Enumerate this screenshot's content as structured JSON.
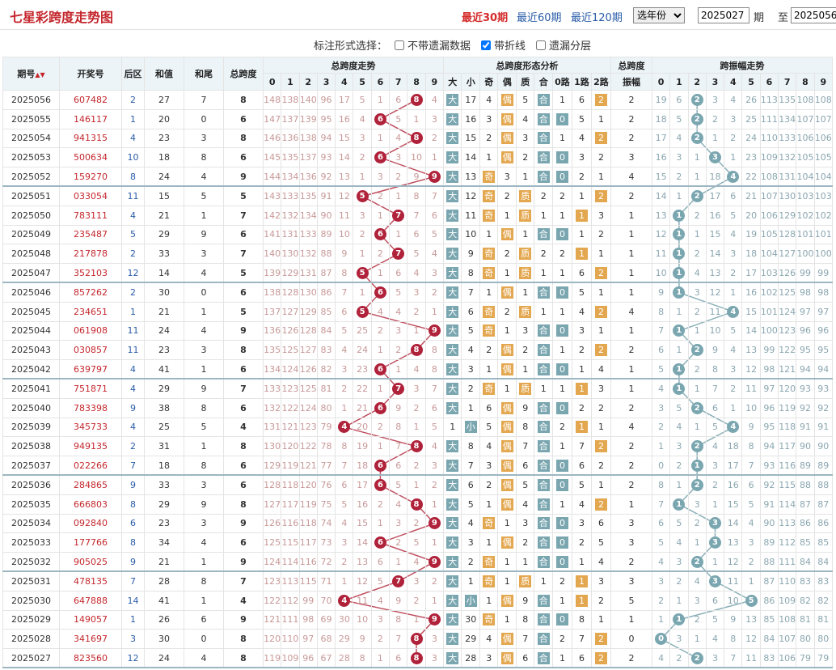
{
  "header": {
    "title": "七星彩跨度走势图",
    "periods": [
      "最近30期",
      "最近60期",
      "最近120期"
    ],
    "active_period": "最近30期",
    "year_select": "选年份",
    "from_value": "2025027",
    "from_label": "期",
    "to_label": "至",
    "to_value": "2025056"
  },
  "options": {
    "label": "标注形式选择：",
    "items": [
      {
        "label": "不带遗漏数据",
        "checked": false
      },
      {
        "label": "带折线",
        "checked": true
      },
      {
        "label": "遗漏分层",
        "checked": false
      }
    ]
  },
  "table": {
    "headers": {
      "issue": "期号",
      "draw": "开奖号",
      "back": "后区",
      "sum": "和值",
      "tail": "和尾",
      "span": "总跨度",
      "span_trend": "总跨度走势",
      "shape": "总跨度形态分析",
      "amp": "跨度振幅",
      "amp_trend": "跨振幅走势"
    },
    "digits": [
      "0",
      "1",
      "2",
      "3",
      "4",
      "5",
      "6",
      "7",
      "8",
      "9"
    ],
    "shape_cols": [
      "大",
      "小",
      "奇",
      "偶",
      "质",
      "合",
      "0路",
      "1路",
      "2路"
    ],
    "amp_label2": "振幅",
    "rows": [
      [
        "2025056",
        "607482",
        "2",
        "27",
        "7",
        "8",
        "148,138,140,96,17,5,1,6,8,4",
        "大,17,4,偶,5,合,1,6,2",
        "2",
        "19,6,2,3,4,26,113,135,108,108"
      ],
      [
        "2025055",
        "146117",
        "1",
        "20",
        "0",
        "6",
        "147,137,139,95,16,4,6,5,1,3",
        "大,16,3,偶,4,合,0,5,1",
        "2",
        "18,5,2,2,3,25,111,134,107,107"
      ],
      [
        "2025054",
        "941315",
        "4",
        "23",
        "3",
        "8",
        "146,136,138,94,15,3,1,4,8,2",
        "大,15,2,偶,3,合,1,4,2",
        "2",
        "17,4,2,1,2,24,110,133,106,106"
      ],
      [
        "2025053",
        "500634",
        "10",
        "18",
        "8",
        "6",
        "145,135,137,93,14,2,6,3,10,1",
        "大,14,1,偶,2,合,0,3,2",
        "3",
        "16,3,1,3,1,23,109,132,105,105"
      ],
      [
        "2025052",
        "159270",
        "8",
        "24",
        "4",
        "9",
        "144,134,136,92,13,1,3,2,9,9",
        "大,13,奇,3,1,合,0,2,1",
        "4",
        "15,2,1,18,4,22,108,131,104,104"
      ],
      [
        "2025051",
        "033054",
        "11",
        "15",
        "5",
        "5",
        "143,133,135,91,12,5,2,1,8,7",
        "大,12,奇,2,质,2,2,1,2",
        "2",
        "14,1,2,17,6,21,107,130,103,103"
      ],
      [
        "2025050",
        "783111",
        "4",
        "21",
        "1",
        "7",
        "142,132,134,90,11,3,1,7,7,6",
        "大,11,奇,1,质,1,1,1,3",
        "1",
        "13,1,2,16,5,20,106,129,102,102"
      ],
      [
        "2025049",
        "235487",
        "5",
        "29",
        "9",
        "6",
        "141,131,133,89,10,2,6,1,6,5",
        "大,10,1,偶,1,合,0,1,2",
        "1",
        "12,1,1,15,4,19,105,128,101,101"
      ],
      [
        "2025048",
        "217878",
        "2",
        "33",
        "3",
        "7",
        "140,130,132,88,9,1,2,7,5,4",
        "大,9,奇,2,质,2,2,1,1",
        "1",
        "11,1,2,14,3,18,104,127,100,100"
      ],
      [
        "2025047",
        "352103",
        "12",
        "14",
        "4",
        "5",
        "139,129,131,87,8,5,1,6,4,3",
        "大,8,奇,1,质,1,1,6,2",
        "1",
        "10,1,4,13,2,17,103,126,99,99"
      ],
      [
        "2025046",
        "857262",
        "2",
        "30",
        "0",
        "6",
        "138,128,130,86,7,1,6,5,3,2",
        "大,7,1,偶,1,合,0,5,1",
        "1",
        "9,1,3,12,1,16,102,125,98,98"
      ],
      [
        "2025045",
        "234651",
        "1",
        "21",
        "1",
        "5",
        "137,127,129,85,6,5,4,4,2,1",
        "大,6,奇,2,质,1,1,4,2",
        "4",
        "8,1,2,11,4,15,101,124,97,97"
      ],
      [
        "2025044",
        "061908",
        "11",
        "24",
        "4",
        "9",
        "136,126,128,84,5,25,2,3,1,9",
        "大,5,奇,1,3,合,0,3,1",
        "1",
        "7,1,1,10,5,14,100,123,96,96"
      ],
      [
        "2025043",
        "030857",
        "11",
        "23",
        "3",
        "8",
        "135,125,127,83,4,24,1,2,8,8",
        "大,4,2,偶,2,合,1,2,2",
        "2",
        "6,1,2,9,4,13,99,122,95,95"
      ],
      [
        "2025042",
        "639797",
        "4",
        "41",
        "1",
        "6",
        "134,124,126,82,3,23,6,1,4,8",
        "大,3,1,偶,1,合,0,1,4",
        "1",
        "5,1,2,8,3,12,98,121,94,94"
      ],
      [
        "2025041",
        "751871",
        "4",
        "29",
        "9",
        "7",
        "133,123,125,81,2,22,1,7,3,7",
        "大,2,奇,1,质,1,1,1,3",
        "1",
        "4,1,1,7,2,11,97,120,93,93"
      ],
      [
        "2025040",
        "783398",
        "9",
        "38",
        "8",
        "6",
        "132,122,124,80,1,21,6,9,2,6",
        "大,1,6,偶,9,合,0,2,2",
        "2",
        "3,5,2,6,1,10,96,119,92,92"
      ],
      [
        "2025039",
        "345733",
        "4",
        "25",
        "5",
        "4",
        "131,121,123,79,4,20,2,8,1,5",
        "1,小,5,偶,8,合,2,1,1",
        "4",
        "2,4,1,5,4,9,95,118,91,91"
      ],
      [
        "2025038",
        "949135",
        "2",
        "31",
        "1",
        "8",
        "130,120,122,78,8,19,1,7,8,4",
        "大,8,4,偶,7,合,1,7,2",
        "2",
        "1,3,2,4,18,8,94,117,90,90"
      ],
      [
        "2025037",
        "022266",
        "7",
        "18",
        "8",
        "6",
        "129,119,121,77,7,18,6,6,2,3",
        "大,7,3,偶,6,合,0,6,2",
        "2",
        "0,2,1,3,17,7,93,116,89,89"
      ],
      [
        "2025036",
        "284865",
        "9",
        "33",
        "3",
        "6",
        "128,118,120,76,6,17,6,5,1,2",
        "大,6,2,偶,5,合,0,5,1",
        "2",
        "8,1,2,2,16,6,92,115,88,88"
      ],
      [
        "2025035",
        "666803",
        "8",
        "29",
        "9",
        "8",
        "127,117,119,75,5,16,2,4,8,1",
        "大,5,1,偶,4,合,1,4,2",
        "1",
        "7,1,3,1,15,5,91,114,87,87"
      ],
      [
        "2025034",
        "092840",
        "6",
        "23",
        "3",
        "9",
        "126,116,118,74,4,15,1,3,2,9",
        "大,4,奇,1,3,合,0,3,6",
        "3",
        "6,5,2,3,14,4,90,113,86,86"
      ],
      [
        "2025033",
        "177766",
        "8",
        "34",
        "4",
        "6",
        "125,115,117,73,3,14,6,2,5,1",
        "大,3,1,偶,2,合,0,2,5",
        "3",
        "5,4,1,3,13,3,89,112,85,85"
      ],
      [
        "2025032",
        "905025",
        "9",
        "21",
        "1",
        "9",
        "124,114,116,72,2,13,6,1,4,9",
        "大,2,奇,1,1,合,0,1,4",
        "2",
        "4,3,2,1,12,2,88,111,84,84"
      ],
      [
        "2025031",
        "478135",
        "7",
        "28",
        "8",
        "7",
        "123,113,115,71,1,12,5,7,3,2",
        "大,1,奇,1,质,1,2,1,3",
        "3",
        "3,2,4,3,11,1,87,110,83,83"
      ],
      [
        "2025030",
        "647888",
        "14",
        "41",
        "1",
        "4",
        "122,112,99,70,4,11,4,9,2,1",
        "大,小,1,偶,9,合,1,1,2",
        "5",
        "2,1,3,6,10,5,86,109,82,82"
      ],
      [
        "2025029",
        "149057",
        "1",
        "26",
        "6",
        "9",
        "121,111,98,69,30,10,3,8,1,9",
        "大,30,奇,1,8,合,0,8,1",
        "1",
        "1,1,2,5,9,13,85,108,81,81"
      ],
      [
        "2025028",
        "341697",
        "3",
        "30",
        "0",
        "8",
        "120,110,97,68,29,9,2,7,8,3",
        "大,29,4,偶,7,合,2,7,2",
        "0",
        "0,3,1,4,8,12,84,107,80,80"
      ],
      [
        "2025027",
        "823560",
        "12",
        "24",
        "4",
        "8",
        "119,109,96,67,28,8,1,6,8,3",
        "大,28,3,偶,6,合,1,6,2",
        "2",
        "4,2,2,3,7,11,83,106,79,79"
      ]
    ]
  },
  "colors": {
    "red_ball": "#b0213a",
    "blue_ball": "#7aa6b0",
    "orange_tag": "#e3a74f",
    "header_bg": "#ecf4f8",
    "title": "#c4262c"
  }
}
